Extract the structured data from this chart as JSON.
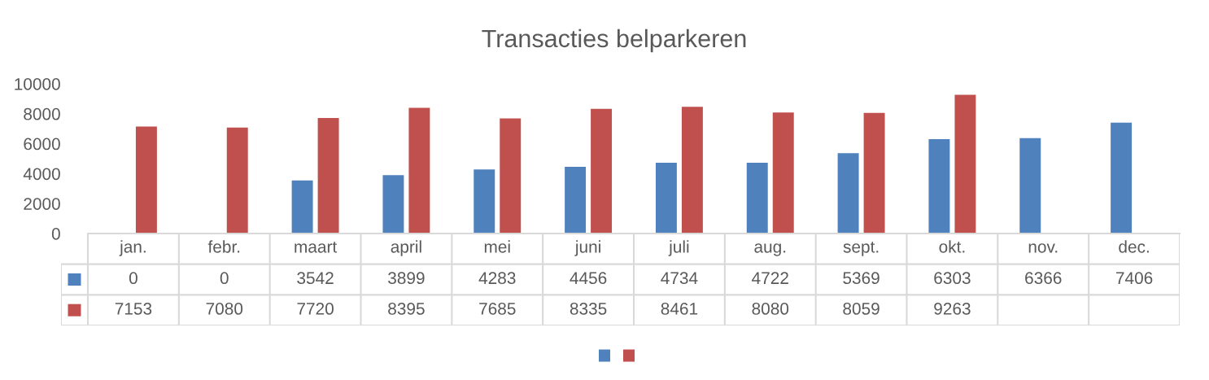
{
  "chart_data": {
    "type": "bar",
    "title": "Transacties belparkeren",
    "categories": [
      "jan.",
      "febr.",
      "maart",
      "april",
      "mei",
      "juni",
      "juli",
      "aug.",
      "sept.",
      "okt.",
      "nov.",
      "dec."
    ],
    "series": [
      {
        "color": "#4f81bd",
        "values": [
          0,
          0,
          3542,
          3899,
          4283,
          4456,
          4734,
          4722,
          5369,
          6303,
          6366,
          7406
        ]
      },
      {
        "color": "#c0504d",
        "values": [
          7153,
          7080,
          7720,
          8395,
          7685,
          8335,
          8461,
          8080,
          8059,
          9263,
          null,
          null
        ]
      }
    ],
    "ylim": [
      0,
      10000
    ],
    "yticks": [
      0,
      2000,
      4000,
      6000,
      8000,
      10000
    ],
    "data_labels": true
  }
}
